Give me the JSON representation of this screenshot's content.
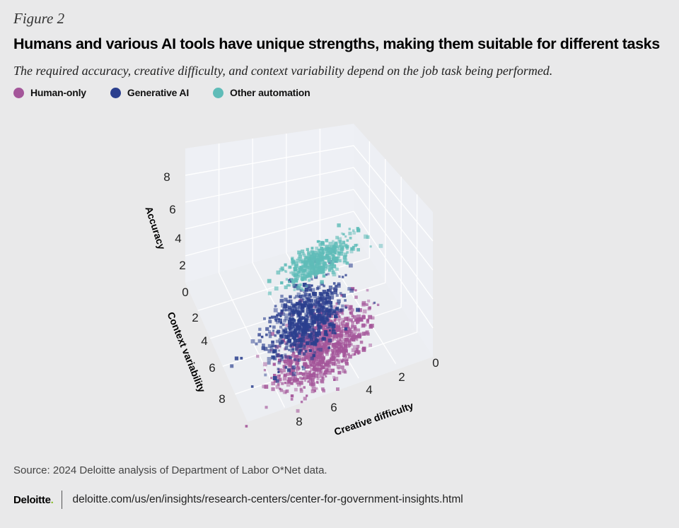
{
  "figure_label": "Figure 2",
  "title": "Humans and various AI tools have unique strengths, making them suitable for different tasks",
  "subtitle": "The required accuracy, creative difficulty, and context variability depend on the job task being performed.",
  "legend": [
    {
      "label": "Human-only",
      "color": "#a4569a"
    },
    {
      "label": "Generative AI",
      "color": "#2b3f8e"
    },
    {
      "label": "Other automation",
      "color": "#5fbcb8"
    }
  ],
  "source": "Source: 2024 Deloitte analysis of Department of Labor O*Net data.",
  "footer": {
    "brand": "Deloitte",
    "brand_dot": ".",
    "url": "deloitte.com/us/en/insights/research-centers/center-for-government-insights.html"
  },
  "chart_data": {
    "type": "scatter",
    "projection": "3d",
    "axes": {
      "x": {
        "label": "Creative difficulty",
        "ticks": [
          "0",
          "2",
          "4",
          "6",
          "8"
        ],
        "range": [
          0,
          9
        ]
      },
      "y": {
        "label": "Context variability",
        "ticks": [
          "2",
          "4",
          "6",
          "8"
        ],
        "range": [
          0,
          9
        ]
      },
      "z": {
        "label": "Accuracy",
        "ticks": [
          "0",
          "2",
          "4",
          "6",
          "8"
        ],
        "range": [
          0,
          9
        ]
      }
    },
    "grid": true,
    "series": [
      {
        "name": "Human-only",
        "color": "#a4569a",
        "clusters": [
          {
            "center": [
              1.5,
              6.5,
              2.5
            ],
            "spread": [
              1.4,
              1.6,
              1.3
            ],
            "count": 900
          }
        ]
      },
      {
        "name": "Generative AI",
        "color": "#2b3f8e",
        "clusters": [
          {
            "center": [
              4.5,
              3.5,
              3.5
            ],
            "spread": [
              1.2,
              1.3,
              1.4
            ],
            "count": 650
          }
        ]
      },
      {
        "name": "Other automation",
        "color": "#5fbcb8",
        "clusters": [
          {
            "center": [
              4.5,
              2.5,
              6.2
            ],
            "spread": [
              1.1,
              1.1,
              0.6
            ],
            "count": 450
          }
        ]
      }
    ]
  }
}
